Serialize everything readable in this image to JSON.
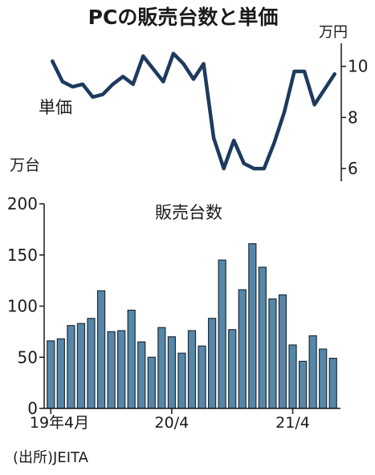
{
  "chart_data": [
    {
      "type": "line",
      "title": "PCの販売台数と単価",
      "series": [
        {
          "name": "単価",
          "values": [
            10.2,
            9.4,
            9.2,
            9.3,
            8.8,
            8.9,
            9.3,
            9.6,
            9.3,
            10.4,
            9.9,
            9.4,
            10.5,
            10.1,
            9.5,
            10.1,
            7.2,
            6.0,
            7.1,
            6.2,
            6.0,
            6.0,
            7.0,
            8.2,
            9.8,
            9.8,
            8.5,
            9.1,
            9.7
          ]
        }
      ],
      "unit_label": "万円",
      "yticks": [
        6,
        8,
        10
      ],
      "ylim": [
        5.5,
        10.9
      ],
      "grid": false
    },
    {
      "type": "bar",
      "series": [
        {
          "name": "販売台数",
          "values": [
            66,
            68,
            81,
            83,
            88,
            115,
            75,
            76,
            96,
            65,
            50,
            79,
            70,
            54,
            76,
            61,
            88,
            145,
            77,
            116,
            161,
            138,
            107,
            111,
            62,
            46,
            71,
            58,
            49
          ]
        }
      ],
      "unit_label": "万台",
      "yticks": [
        0,
        50,
        100,
        150,
        200
      ],
      "ylim": [
        0,
        200
      ],
      "xtick_labels": [
        "19年4月",
        "20/4",
        "21/4"
      ],
      "grid": false
    }
  ],
  "source_note": "(出所)JEITA",
  "colors": {
    "line": "#1d3a5f",
    "bar_fill": "#5687a8",
    "bar_stroke": "#1f2d3a",
    "axis": "#1a1a1a"
  }
}
